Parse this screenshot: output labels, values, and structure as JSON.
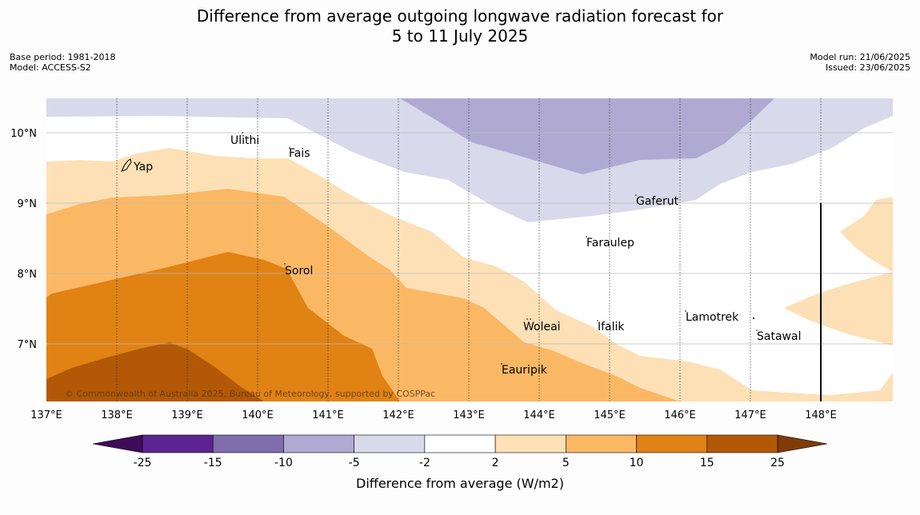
{
  "title_line1": "Difference from average outgoing longwave radiation forecast for",
  "title_line2": "5 to 11 July 2025",
  "meta_left": [
    "Base period: 1981-2018",
    "Model: ACCESS-S2"
  ],
  "meta_right": [
    "Model run: 21/06/2025",
    "Issued: 23/06/2025"
  ],
  "lon_ticks": [
    "137°E",
    "138°E",
    "139°E",
    "140°E",
    "141°E",
    "142°E",
    "143°E",
    "144°E",
    "145°E",
    "146°E",
    "147°E",
    "148°E"
  ],
  "lat_ticks": [
    "10°N",
    "9°N",
    "8°N",
    "7°N"
  ],
  "places": [
    {
      "name": "Yap"
    },
    {
      "name": "Ulithi"
    },
    {
      "name": "Fais"
    },
    {
      "name": "Gaferut"
    },
    {
      "name": "Faraulep"
    },
    {
      "name": "Sorol"
    },
    {
      "name": "Woleai"
    },
    {
      "name": "Ifalik"
    },
    {
      "name": "Lamotrek"
    },
    {
      "name": "Satawal"
    },
    {
      "name": "Eauripik"
    }
  ],
  "copyright": "© Commonwealth of Australia 2025, Bureau of Meteorology, supported by COSPPac",
  "colorbar": {
    "label": "Difference from average (W/m2)",
    "ticks": [
      "-25",
      "-15",
      "-10",
      "-5",
      "-2",
      "2",
      "5",
      "10",
      "15",
      "25"
    ],
    "colors": [
      "#3f0c5a",
      "#5b2490",
      "#7f6eab",
      "#b0aad2",
      "#d8d9ea",
      "#ffffff",
      "#fde0b6",
      "#fbb864",
      "#e08214",
      "#b35806",
      "#7f3b08"
    ]
  }
}
